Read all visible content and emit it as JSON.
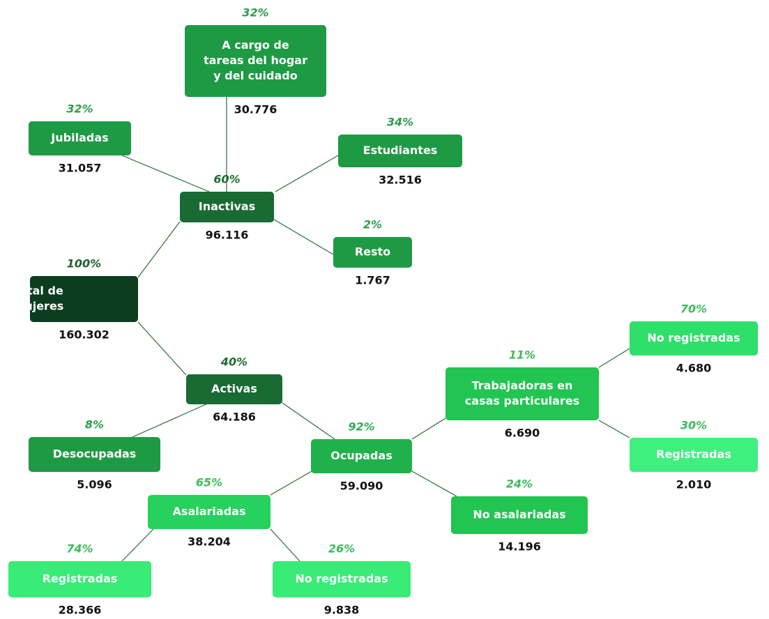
{
  "nodes": [
    {
      "label": [
        "Total de",
        "mujeres"
      ],
      "percent": "100%",
      "value": "160.302"
    },
    {
      "label": [
        "Inactivas"
      ],
      "percent": "60%",
      "value": "96.116"
    },
    {
      "label": [
        "Activas"
      ],
      "percent": "40%",
      "value": "64.186"
    },
    {
      "label": [
        "A cargo de",
        "tareas del hogar",
        "y del cuidado"
      ],
      "percent": "32%",
      "value": "30.776"
    },
    {
      "label": [
        "Jubiladas"
      ],
      "percent": "32%",
      "value": "31.057"
    },
    {
      "label": [
        "Estudiantes"
      ],
      "percent": "34%",
      "value": "32.516"
    },
    {
      "label": [
        "Resto"
      ],
      "percent": "2%",
      "value": "1.767"
    },
    {
      "label": [
        "Desocupadas"
      ],
      "percent": "8%",
      "value": "5.096"
    },
    {
      "label": [
        "Ocupadas"
      ],
      "percent": "92%",
      "value": "59.090"
    },
    {
      "label": [
        "Trabajadoras en",
        "casas particulares"
      ],
      "percent": "11%",
      "value": "6.690"
    },
    {
      "label": [
        "No registradas"
      ],
      "percent": "70%",
      "value": "4.680"
    },
    {
      "label": [
        "Registradas"
      ],
      "percent": "30%",
      "value": "2.010"
    },
    {
      "label": [
        "Asalariadas"
      ],
      "percent": "65%",
      "value": "38.204"
    },
    {
      "label": [
        "No asalariadas"
      ],
      "percent": "24%",
      "value": "14.196"
    },
    {
      "label": [
        "Registradas"
      ],
      "percent": "74%",
      "value": "28.366"
    },
    {
      "label": [
        "No registradas"
      ],
      "percent": "26%",
      "value": "9.838"
    }
  ]
}
